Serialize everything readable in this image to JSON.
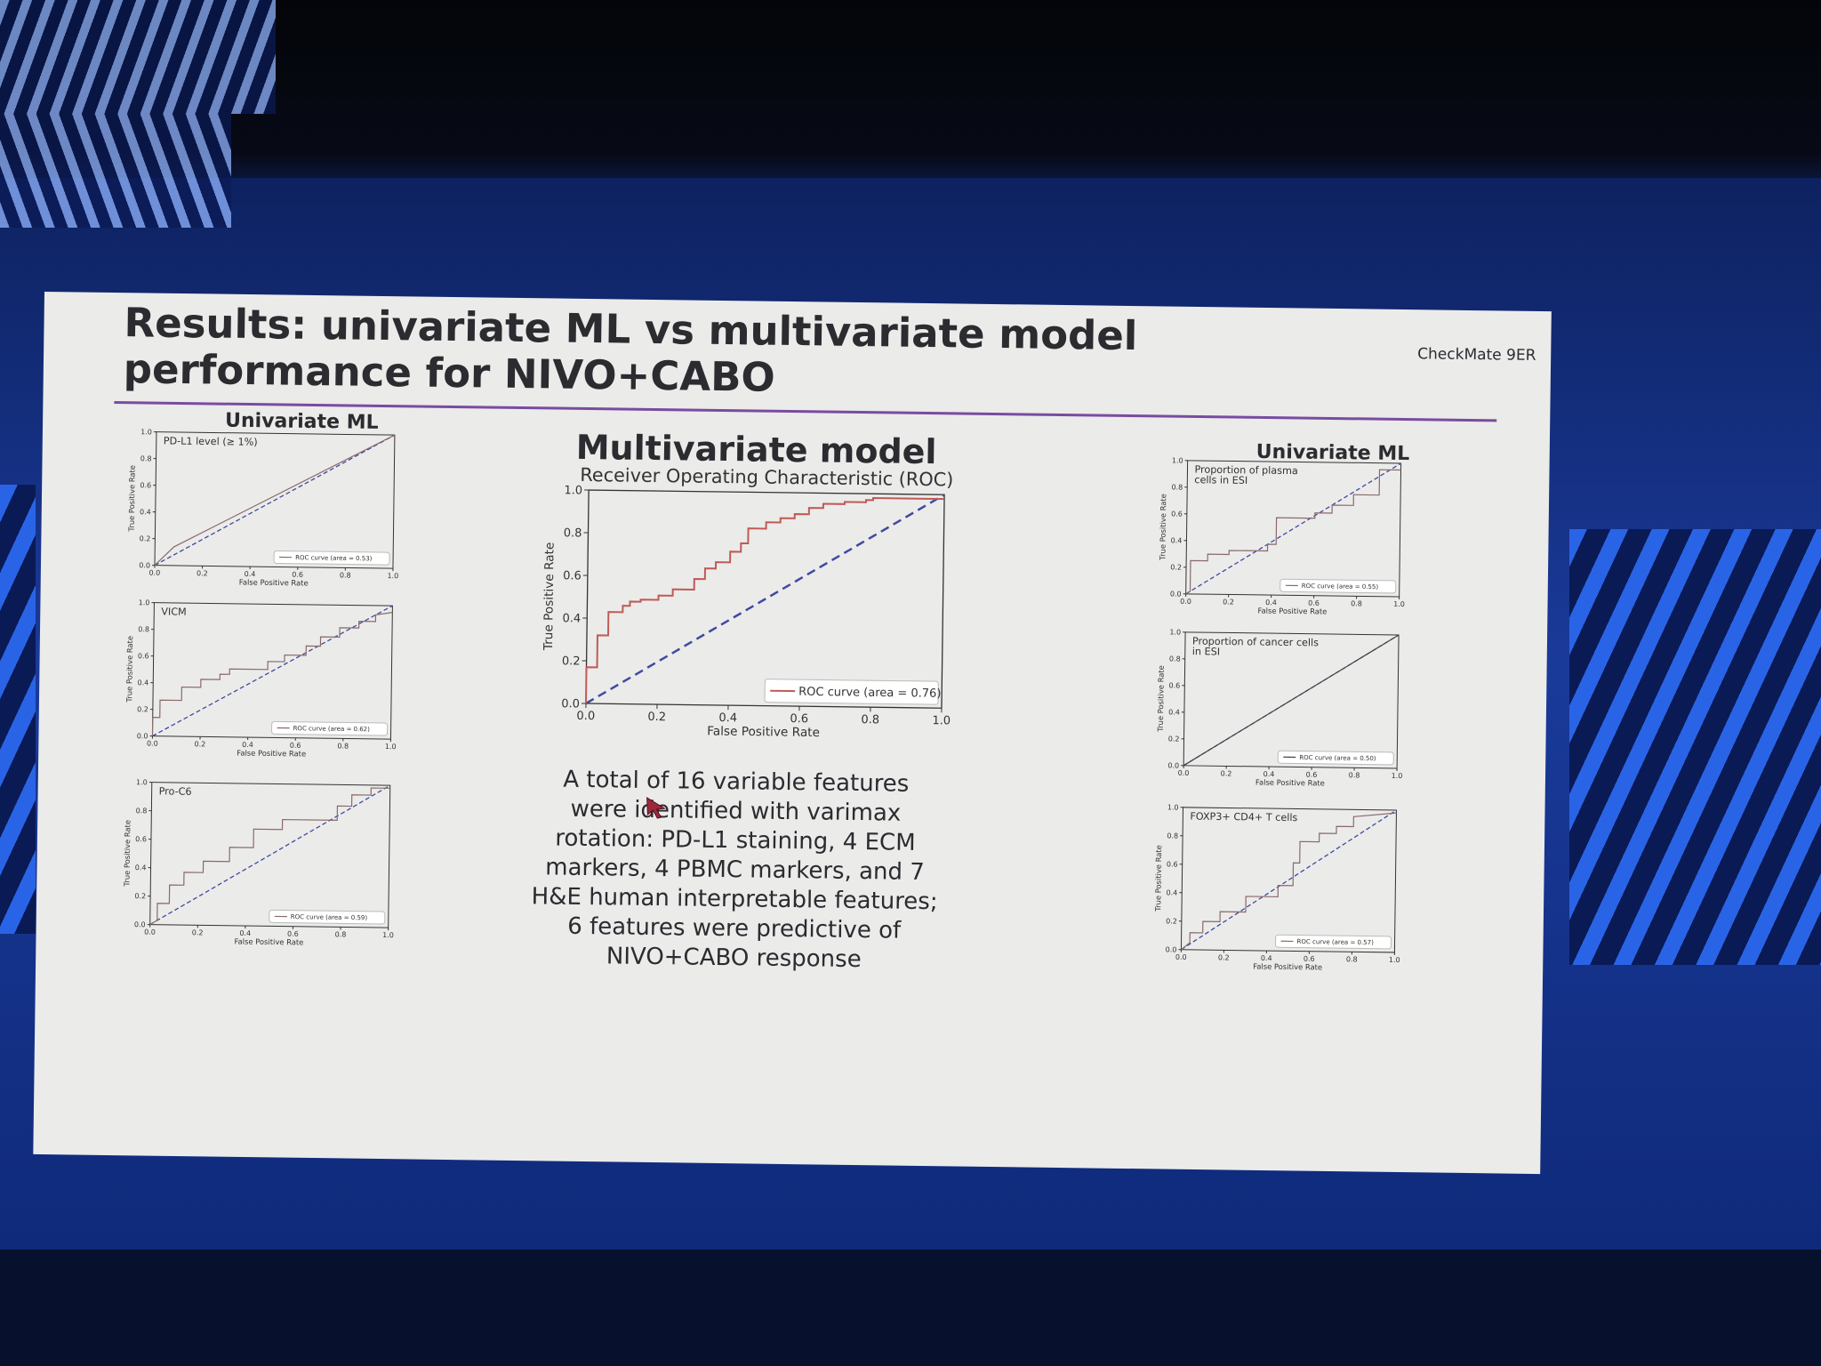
{
  "slide": {
    "title": "Results: univariate ML vs multivariate model performance for NIVO+CABO",
    "brand": "CheckMate 9ER",
    "heading_left": "Univariate ML",
    "heading_right": "Univariate ML",
    "heading_center": "Multivariate model",
    "summary": "A total of 16 variable features were identified with varimax rotation: PD-L1 staining, 4 ECM markers, 4 PBMC markers, and 7 H&E human interpretable features; 6 features were predictive of NIVO+CABO response"
  },
  "colors": {
    "roc": "#c05a55",
    "chance": "#3f4aa0",
    "axis": "#333333",
    "uni_roc": "#8a6a6a"
  },
  "chart_data": [
    {
      "id": "main",
      "type": "line",
      "title": "Receiver Operating Characteristic (ROC)",
      "xlabel": "False Positive Rate",
      "ylabel": "True Positive Rate",
      "xlim": [
        0,
        1
      ],
      "ylim": [
        0,
        1
      ],
      "xticks": [
        "0.0",
        "0.2",
        "0.4",
        "0.6",
        "0.8",
        "1.0"
      ],
      "yticks": [
        "0.0",
        "0.2",
        "0.4",
        "0.6",
        "0.8",
        "1.0"
      ],
      "legend": "ROC curve (area = 0.76)",
      "legend_position": "lower right",
      "series": [
        {
          "name": "ROC curve (area = 0.76)",
          "x": [
            0,
            0,
            0.03,
            0.03,
            0.06,
            0.06,
            0.1,
            0.1,
            0.12,
            0.12,
            0.15,
            0.15,
            0.2,
            0.2,
            0.24,
            0.24,
            0.3,
            0.3,
            0.33,
            0.33,
            0.36,
            0.36,
            0.4,
            0.4,
            0.43,
            0.43,
            0.45,
            0.45,
            0.5,
            0.5,
            0.54,
            0.54,
            0.58,
            0.58,
            0.62,
            0.62,
            0.66,
            0.66,
            0.72,
            0.72,
            0.78,
            0.78,
            0.8,
            0.8,
            1.0
          ],
          "y": [
            0,
            0.17,
            0.17,
            0.32,
            0.32,
            0.43,
            0.43,
            0.46,
            0.46,
            0.48,
            0.48,
            0.49,
            0.49,
            0.51,
            0.51,
            0.54,
            0.54,
            0.59,
            0.59,
            0.64,
            0.64,
            0.67,
            0.67,
            0.72,
            0.72,
            0.76,
            0.76,
            0.83,
            0.83,
            0.86,
            0.86,
            0.88,
            0.88,
            0.9,
            0.9,
            0.93,
            0.93,
            0.95,
            0.95,
            0.96,
            0.96,
            0.97,
            0.97,
            0.98,
            0.98
          ]
        }
      ]
    },
    {
      "id": "pdl1",
      "type": "line",
      "title": "PD-L1 level (≥ 1%)",
      "xlabel": "False Positive Rate",
      "ylabel": "True Positive Rate",
      "xlim": [
        0,
        1
      ],
      "ylim": [
        0,
        1
      ],
      "xticks": [
        "0.0",
        "0.2",
        "0.4",
        "0.6",
        "0.8",
        "1.0"
      ],
      "yticks": [
        "0.0",
        "0.2",
        "0.4",
        "0.6",
        "0.8",
        "1.0"
      ],
      "legend": "ROC curve (area = 0.53)",
      "series": [
        {
          "name": "ROC curve (area = 0.53)",
          "x": [
            0,
            0.08,
            1.0
          ],
          "y": [
            0,
            0.14,
            1.0
          ]
        }
      ]
    },
    {
      "id": "vicm",
      "type": "line",
      "title": "VICM",
      "xlabel": "False Positive Rate",
      "ylabel": "True Positive Rate",
      "xlim": [
        0,
        1
      ],
      "ylim": [
        0,
        1
      ],
      "xticks": [
        "0.0",
        "0.2",
        "0.4",
        "0.6",
        "0.8",
        "1.0"
      ],
      "yticks": [
        "0.0",
        "0.2",
        "0.4",
        "0.6",
        "0.8",
        "1.0"
      ],
      "legend": "ROC curve (area = 0.62)",
      "series": [
        {
          "name": "ROC curve (area = 0.62)",
          "x": [
            0,
            0,
            0.03,
            0.03,
            0.12,
            0.12,
            0.2,
            0.2,
            0.28,
            0.28,
            0.32,
            0.32,
            0.48,
            0.48,
            0.55,
            0.55,
            0.64,
            0.64,
            0.7,
            0.7,
            0.78,
            0.78,
            0.86,
            0.86,
            0.93,
            0.93,
            1.0
          ],
          "y": [
            0,
            0.14,
            0.14,
            0.27,
            0.27,
            0.37,
            0.37,
            0.43,
            0.43,
            0.47,
            0.47,
            0.51,
            0.51,
            0.57,
            0.57,
            0.62,
            0.62,
            0.69,
            0.69,
            0.76,
            0.76,
            0.83,
            0.83,
            0.88,
            0.88,
            0.93,
            0.95
          ]
        }
      ]
    },
    {
      "id": "proc6",
      "type": "line",
      "title": "Pro-C6",
      "xlabel": "False Positive Rate",
      "ylabel": "True Positive Rate",
      "xlim": [
        0,
        1
      ],
      "ylim": [
        0,
        1
      ],
      "xticks": [
        "0.0",
        "0.2",
        "0.4",
        "0.6",
        "0.8",
        "1.0"
      ],
      "yticks": [
        "0.0",
        "0.2",
        "0.4",
        "0.6",
        "0.8",
        "1.0"
      ],
      "legend": "ROC curve (area = 0.59)",
      "series": [
        {
          "name": "ROC curve (area = 0.59)",
          "x": [
            0,
            0.03,
            0.03,
            0.08,
            0.08,
            0.14,
            0.14,
            0.22,
            0.22,
            0.33,
            0.33,
            0.43,
            0.43,
            0.55,
            0.55,
            0.78,
            0.78,
            0.84,
            0.84,
            0.92,
            0.92,
            1.0
          ],
          "y": [
            0,
            0.03,
            0.15,
            0.15,
            0.28,
            0.28,
            0.37,
            0.37,
            0.45,
            0.45,
            0.55,
            0.55,
            0.68,
            0.68,
            0.75,
            0.75,
            0.85,
            0.85,
            0.93,
            0.93,
            0.98,
            0.98
          ]
        }
      ]
    },
    {
      "id": "plasma",
      "type": "line",
      "title": "Proportion of plasma cells in ESI",
      "xlabel": "False Positive Rate",
      "ylabel": "True Positive Rate",
      "xlim": [
        0,
        1
      ],
      "ylim": [
        0,
        1
      ],
      "xticks": [
        "0.0",
        "0.2",
        "0.4",
        "0.6",
        "0.8",
        "1.0"
      ],
      "yticks": [
        "0.0",
        "0.2",
        "0.4",
        "0.6",
        "0.8",
        "1.0"
      ],
      "legend": "ROC curve (area = 0.55)",
      "series": [
        {
          "name": "ROC curve (area = 0.55)",
          "x": [
            0,
            0.02,
            0.02,
            0.1,
            0.1,
            0.2,
            0.2,
            0.38,
            0.38,
            0.42,
            0.42,
            0.6,
            0.6,
            0.68,
            0.68,
            0.78,
            0.78,
            0.9,
            0.9,
            1.0
          ],
          "y": [
            0,
            0.02,
            0.25,
            0.25,
            0.3,
            0.3,
            0.33,
            0.33,
            0.38,
            0.38,
            0.58,
            0.58,
            0.62,
            0.62,
            0.68,
            0.68,
            0.76,
            0.76,
            0.95,
            0.95
          ]
        }
      ]
    },
    {
      "id": "cancer",
      "type": "line",
      "title": "Proportion of cancer cells in ESI",
      "xlabel": "False Positive Rate",
      "ylabel": "True Positive Rate",
      "xlim": [
        0,
        1
      ],
      "ylim": [
        0,
        1
      ],
      "xticks": [
        "0.0",
        "0.2",
        "0.4",
        "0.6",
        "0.8",
        "1.0"
      ],
      "yticks": [
        "0.0",
        "0.2",
        "0.4",
        "0.6",
        "0.8",
        "1.0"
      ],
      "legend": "ROC curve (area = 0.50)",
      "series": [
        {
          "name": "ROC curve (area = 0.50)",
          "x": [
            0,
            1.0
          ],
          "y": [
            0,
            1.0
          ]
        }
      ]
    },
    {
      "id": "foxp3",
      "type": "line",
      "title": "FOXP3+ CD4+ T cells",
      "xlabel": "False Positive Rate",
      "ylabel": "True Positive Rate",
      "xlim": [
        0,
        1
      ],
      "ylim": [
        0,
        1
      ],
      "xticks": [
        "0.0",
        "0.2",
        "0.4",
        "0.6",
        "0.8",
        "1.0"
      ],
      "yticks": [
        "0.0",
        "0.2",
        "0.4",
        "0.6",
        "0.8",
        "1.0"
      ],
      "legend": "ROC curve (area = 0.57)",
      "series": [
        {
          "name": "ROC curve (area = 0.57)",
          "x": [
            0,
            0.04,
            0.04,
            0.1,
            0.1,
            0.18,
            0.18,
            0.3,
            0.3,
            0.45,
            0.45,
            0.52,
            0.52,
            0.55,
            0.55,
            0.64,
            0.64,
            0.72,
            0.72,
            0.8,
            0.8,
            1.0
          ],
          "y": [
            0,
            0.05,
            0.12,
            0.12,
            0.2,
            0.2,
            0.27,
            0.27,
            0.38,
            0.38,
            0.46,
            0.46,
            0.62,
            0.62,
            0.77,
            0.77,
            0.83,
            0.83,
            0.88,
            0.88,
            0.95,
            0.98
          ]
        }
      ]
    }
  ]
}
